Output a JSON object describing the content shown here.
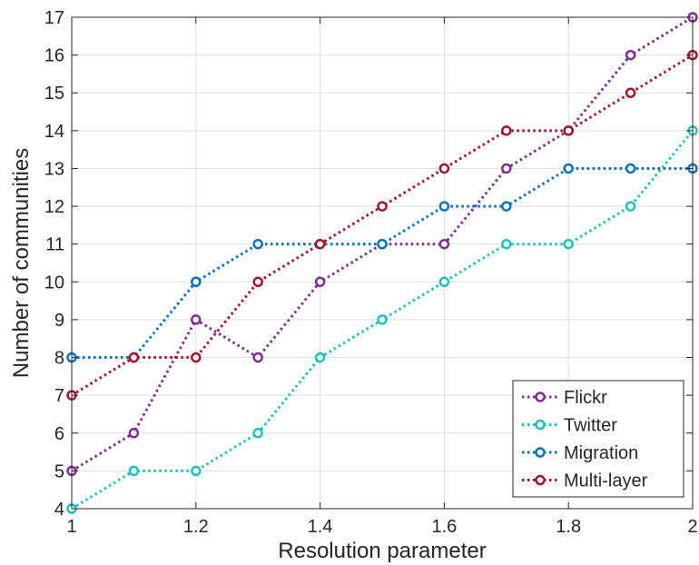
{
  "chart_data": {
    "type": "line",
    "xlabel": "Resolution parameter",
    "ylabel": "Number of communities",
    "xlim": [
      1,
      2
    ],
    "ylim": [
      4,
      17
    ],
    "x_ticks": [
      "1",
      "1.2",
      "1.4",
      "1.6",
      "1.8",
      "2"
    ],
    "x_tick_values": [
      1,
      1.2,
      1.4,
      1.6,
      1.8,
      2
    ],
    "y_ticks": [
      "4",
      "5",
      "6",
      "7",
      "8",
      "9",
      "10",
      "11",
      "12",
      "13",
      "14",
      "15",
      "16",
      "17"
    ],
    "y_tick_values": [
      4,
      5,
      6,
      7,
      8,
      9,
      10,
      11,
      12,
      13,
      14,
      15,
      16,
      17
    ],
    "grid": true,
    "legend_position": "bottom-right",
    "x": [
      1,
      1.1,
      1.2,
      1.3,
      1.4,
      1.5,
      1.6,
      1.7,
      1.8,
      1.9,
      2
    ],
    "series": [
      {
        "name": "Flickr",
        "color": "#7E2F8E",
        "values": [
          5,
          6,
          9,
          8,
          10,
          11,
          11,
          13,
          14,
          16,
          17
        ]
      },
      {
        "name": "Twitter",
        "color": "#1FC1BD",
        "values": [
          4,
          5,
          5,
          6,
          8,
          9,
          10,
          11,
          11,
          12,
          14
        ]
      },
      {
        "name": "Migration",
        "color": "#0A72BA",
        "values": [
          8,
          8,
          10,
          11,
          11,
          11,
          12,
          12,
          13,
          13,
          13
        ]
      },
      {
        "name": "Multi-layer",
        "color": "#A2142F",
        "values": [
          7,
          8,
          8,
          10,
          11,
          12,
          13,
          14,
          14,
          15,
          16
        ]
      }
    ]
  }
}
